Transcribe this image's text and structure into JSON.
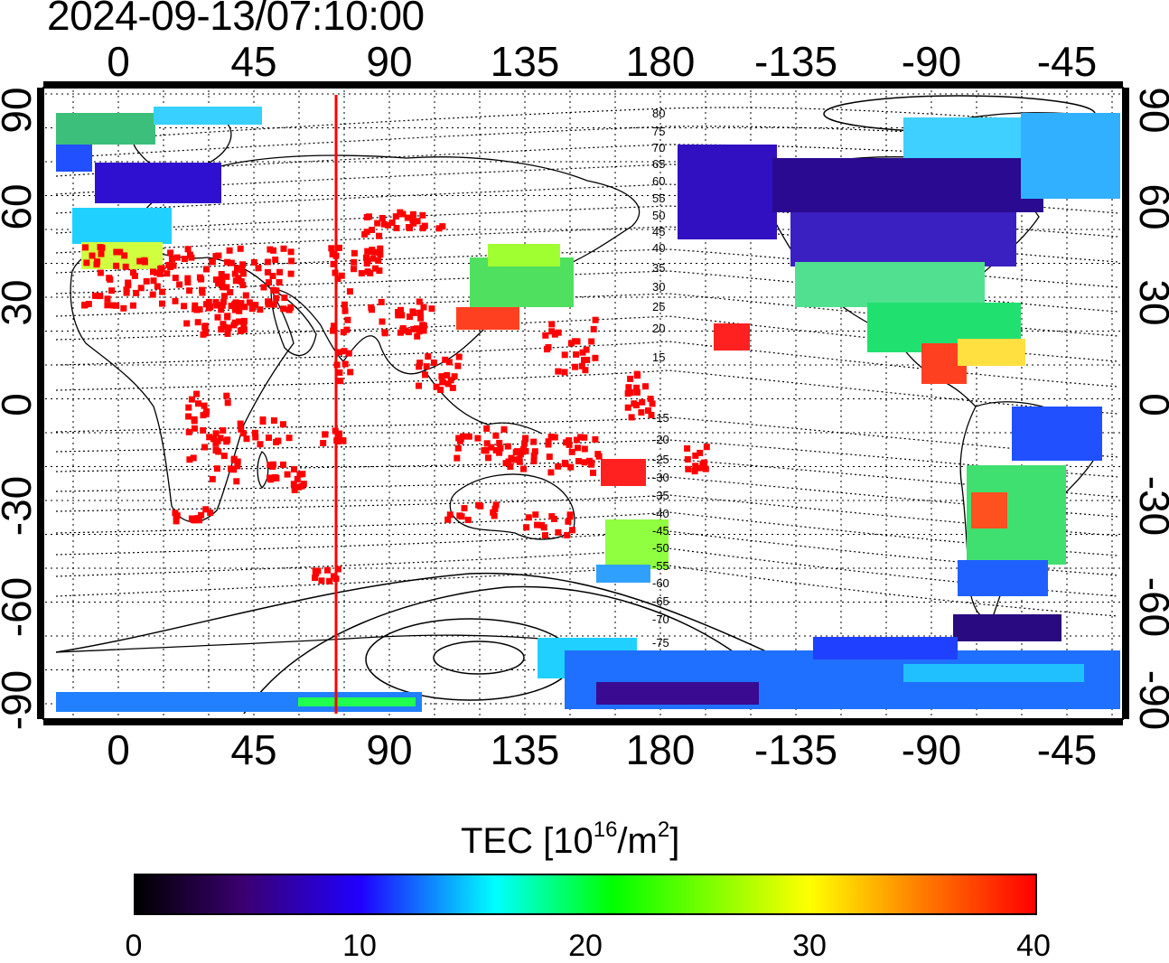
{
  "timestamp": "2024-09-13/07:10:00",
  "map": {
    "top_lon_ticks": [
      "0",
      "45",
      "90",
      "135",
      "180",
      "-135",
      "-90",
      "-45"
    ],
    "bottom_lon_ticks": [
      "0",
      "45",
      "90",
      "135",
      "180",
      "-135",
      "-90",
      "-45"
    ],
    "left_lat_ticks": [
      "90",
      "60",
      "30",
      "0",
      "-30",
      "-60",
      "-90"
    ],
    "right_lat_ticks": [
      "90",
      "60",
      "30",
      "0",
      "-30",
      "-60",
      "-90"
    ],
    "contour_labels": [
      "80",
      "75",
      "70",
      "65",
      "60",
      "55",
      "50",
      "45",
      "40",
      "35",
      "30",
      "25",
      "20",
      "15",
      "-15",
      "-20",
      "-25",
      "-30",
      "-35",
      "-40",
      "-45",
      "-50",
      "-55",
      "-60",
      "-65",
      "-70",
      "-75"
    ]
  },
  "colorbar": {
    "title_prefix": "TEC  [10",
    "title_sup1": "16",
    "title_mid": "/m",
    "title_sup2": "2",
    "title_suffix": "]",
    "ticks": [
      "0",
      "10",
      "20",
      "30",
      "40"
    ],
    "min": 0,
    "max": 40
  },
  "colors": {
    "red": "#ff0000",
    "orange": "#ff8000",
    "yellow": "#ffff00",
    "green": "#00ff00",
    "cyan": "#00ffff",
    "blue": "#2040ff",
    "violet": "#3a0070",
    "dark": "#1a0030"
  }
}
